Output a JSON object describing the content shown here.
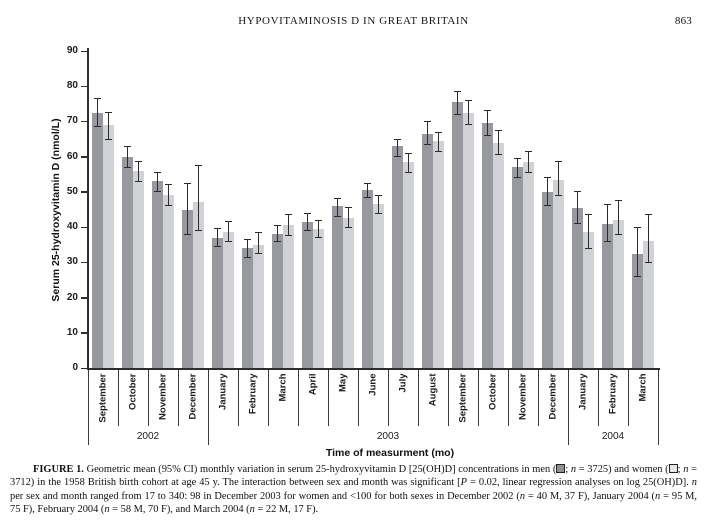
{
  "page": {
    "running_head": "HYPOVITAMINOSIS D IN GREAT BRITAIN",
    "page_number": "863"
  },
  "chart_data": {
    "type": "bar",
    "title": "",
    "xlabel": "Time of measurment (mo)",
    "ylabel": "Serum 25-hydroxyvitamin D (nmol/L)",
    "ylim": [
      0,
      90
    ],
    "ytick_step": 10,
    "grid": false,
    "legend_position": "in-caption",
    "categories": [
      "September",
      "October",
      "November",
      "December",
      "January",
      "February",
      "March",
      "April",
      "May",
      "June",
      "July",
      "August",
      "September",
      "October",
      "November",
      "December",
      "January",
      "February",
      "March"
    ],
    "year_groups": [
      {
        "label": "2002",
        "start": 0,
        "count": 4
      },
      {
        "label": "2003",
        "start": 4,
        "count": 12
      },
      {
        "label": "2004",
        "start": 16,
        "count": 3
      }
    ],
    "series": [
      {
        "name": "men",
        "color": "#97999e",
        "values": [
          72.5,
          60,
          53,
          45,
          37,
          34,
          38,
          41.5,
          46,
          50.5,
          63,
          66.5,
          75.5,
          69.5,
          57,
          50,
          45.5,
          41,
          32.5
        ],
        "ci_low": [
          68.5,
          57,
          50,
          38,
          34.5,
          31.5,
          36,
          39,
          43,
          48.5,
          60,
          63.5,
          72,
          66,
          54,
          46,
          41,
          36,
          26
        ],
        "ci_high": [
          76.5,
          63,
          55.5,
          52.5,
          39.5,
          36.5,
          40.5,
          44,
          48,
          52.5,
          65,
          70,
          78.5,
          73,
          59.5,
          54,
          50,
          46.5,
          40
        ]
      },
      {
        "name": "women",
        "color": "#d1d2d6",
        "values": [
          69,
          56,
          49,
          47,
          38.5,
          35,
          40.5,
          39.5,
          42.5,
          46.5,
          58.5,
          64.5,
          72.5,
          64,
          58.5,
          53.5,
          38.5,
          42,
          36
        ],
        "ci_low": [
          65,
          53,
          46,
          39,
          36,
          32.5,
          37.5,
          37,
          40,
          44,
          55.5,
          61.5,
          69,
          60.5,
          55.5,
          49,
          34,
          38,
          30
        ],
        "ci_high": [
          72.5,
          58.5,
          52,
          57.5,
          41.5,
          38.5,
          43.5,
          42,
          45.5,
          49,
          61,
          67,
          76,
          67.5,
          61.5,
          58.5,
          43.5,
          47.5,
          43.5
        ]
      }
    ]
  },
  "caption": {
    "runs": [
      {
        "t": "FIGURE 1.",
        "b": true
      },
      {
        "t": " Geometric mean (95% CI) monthly variation in serum 25-hydroxyvitamin D [25(OH)D] concentrations in men ("
      },
      {
        "sym": "men"
      },
      {
        "t": "; "
      },
      {
        "t": "n",
        "i": true
      },
      {
        "t": " = 3725) and women ("
      },
      {
        "sym": "women"
      },
      {
        "t": "; "
      },
      {
        "t": "n",
        "i": true
      },
      {
        "t": " = 3712) in the 1958 British birth cohort at age 45 y. The interaction between sex and month was significant ["
      },
      {
        "t": "P",
        "i": true
      },
      {
        "t": " = 0.02, linear regression analyses on log 25(OH)D]. "
      },
      {
        "t": "n",
        "i": true
      },
      {
        "t": " per sex and month ranged from 17 to 340: 98 in December 2003 for women and <100 for both sexes in December 2002 ("
      },
      {
        "t": "n",
        "i": true
      },
      {
        "t": " = 40 M, 37 F), January 2004 ("
      },
      {
        "t": "n",
        "i": true
      },
      {
        "t": " = 95 M, 75 F), February 2004 ("
      },
      {
        "t": "n",
        "i": true
      },
      {
        "t": " = 58 M, 70 F), and March 2004 ("
      },
      {
        "t": "n",
        "i": true
      },
      {
        "t": " = 22 M, 17 F)."
      }
    ]
  },
  "colors": {
    "men_bar": "#97999e",
    "women_bar": "#d1d2d6",
    "axis": "#2e2e2e",
    "error_bar": "#2b2b2b",
    "background": "#ffffff"
  }
}
